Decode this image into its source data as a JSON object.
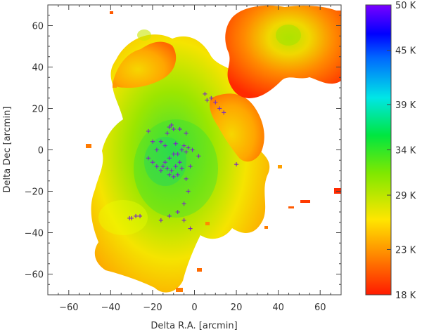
{
  "chart_data": {
    "type": "heatmap",
    "title": "",
    "xlabel": "Delta R.A. [arcmin]",
    "ylabel": "Delta Dec [arcmin]",
    "xlim": [
      -70,
      70
    ],
    "ylim": [
      -70,
      70
    ],
    "x_ticks": [
      -60,
      -40,
      -20,
      0,
      20,
      40,
      60
    ],
    "y_ticks": [
      -60,
      -40,
      -20,
      0,
      20,
      40,
      60
    ],
    "x_tick_labels": [
      "−60",
      "−40",
      "−20",
      "0",
      "20",
      "40",
      "60"
    ],
    "y_tick_labels": [
      "−60",
      "−40",
      "−20",
      "0",
      "20",
      "40",
      "60"
    ],
    "colorbar": {
      "min": 18,
      "max": 50,
      "unit": "K",
      "ticks": [
        18,
        23,
        29,
        34,
        39,
        45,
        50
      ],
      "tick_labels": [
        "18 K",
        "23 K",
        "29 K",
        "34 K",
        "39 K",
        "45 K",
        "50 K"
      ],
      "colormap": [
        "#ff1a00",
        "#ff8a00",
        "#ffe600",
        "#7fe800",
        "#00e640",
        "#00e6e6",
        "#0066ff",
        "#0000ff",
        "#7a00ff"
      ]
    },
    "markers": {
      "symbol": "+",
      "color": "#7b2fbe",
      "points": [
        [
          -12,
          11
        ],
        [
          -11,
          12
        ],
        [
          -10,
          10
        ],
        [
          -13,
          8
        ],
        [
          -7,
          10
        ],
        [
          -5,
          2
        ],
        [
          -3,
          1
        ],
        [
          -4,
          -1
        ],
        [
          -6,
          0
        ],
        [
          -8,
          -2
        ],
        [
          -10,
          -2
        ],
        [
          -12,
          -4
        ],
        [
          -14,
          -6
        ],
        [
          -15,
          -8
        ],
        [
          -13,
          -9
        ],
        [
          -11,
          -10
        ],
        [
          -9,
          -8
        ],
        [
          -7,
          -6
        ],
        [
          -6,
          -9
        ],
        [
          -8,
          -12
        ],
        [
          -10,
          -13
        ],
        [
          -12,
          -12
        ],
        [
          -16,
          -10
        ],
        [
          -18,
          -8
        ],
        [
          -20,
          -6
        ],
        [
          -22,
          -4
        ],
        [
          -18,
          0
        ],
        [
          -20,
          4
        ],
        [
          -22,
          9
        ],
        [
          -16,
          4
        ],
        [
          -4,
          -14
        ],
        [
          -3,
          -20
        ],
        [
          -5,
          -26
        ],
        [
          -8,
          -30
        ],
        [
          -12,
          -32
        ],
        [
          -16,
          -34
        ],
        [
          -28,
          -32
        ],
        [
          -30,
          -33
        ],
        [
          -31,
          -33
        ],
        [
          -26,
          -32
        ],
        [
          -5,
          -34
        ],
        [
          -2,
          -38
        ],
        [
          6,
          24
        ],
        [
          8,
          25
        ],
        [
          12,
          20
        ],
        [
          14,
          18
        ],
        [
          5,
          27
        ],
        [
          10,
          23
        ],
        [
          20,
          -7
        ],
        [
          -4,
          8
        ],
        [
          -1,
          0
        ],
        [
          2,
          -3
        ],
        [
          -2,
          -8
        ],
        [
          -14,
          2
        ],
        [
          -9,
          3
        ]
      ]
    }
  }
}
